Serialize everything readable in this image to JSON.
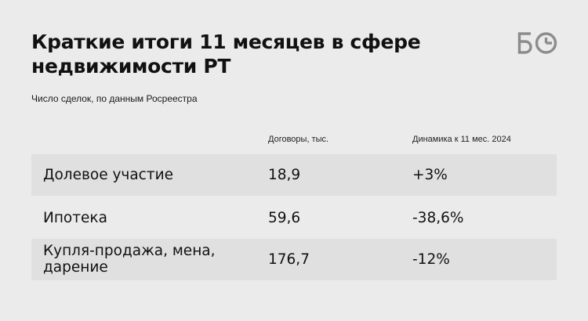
{
  "header": {
    "title": "Краткие итоги 11 месяцев в сфере недвижимости РТ",
    "subtitle": "Число сделок, по данным Росреестра",
    "logo_text": "БО"
  },
  "colors": {
    "background": "#ebebeb",
    "row_shade": "#e0e0e0",
    "text": "#111111",
    "logo": "#8c8c8c"
  },
  "chart_data": {
    "type": "table",
    "title": "Краткие итоги 11 месяцев в сфере недвижимости РТ",
    "subtitle": "Число сделок, по данным Росреестра",
    "columns": [
      "",
      "Договоры, тыс.",
      "Динамика к 11 мес. 2024"
    ],
    "rows": [
      {
        "name": "Долевое участие",
        "value": "18,9",
        "change": "+3%"
      },
      {
        "name": "Ипотека",
        "value": "59,6",
        "change": "-38,6%"
      },
      {
        "name": "Купля-продажа, мена, дарение",
        "value": "176,7",
        "change": "-12%"
      }
    ]
  }
}
